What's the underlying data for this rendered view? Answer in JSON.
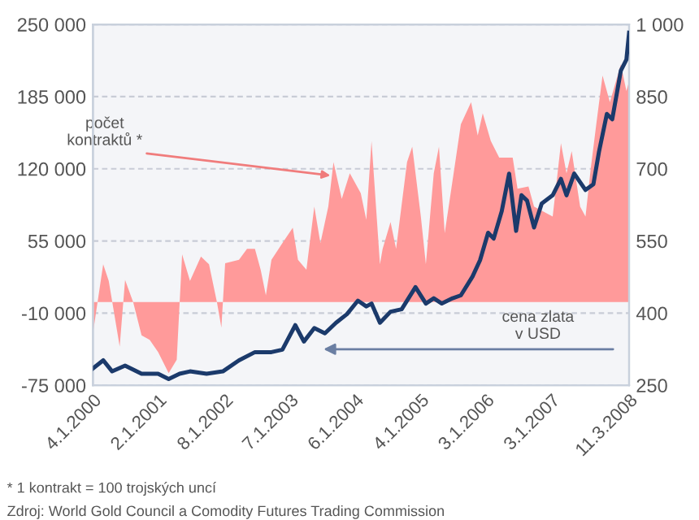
{
  "chart_data": {
    "type": "line",
    "series": [
      {
        "type": "area",
        "axis": "y",
        "color": "#ff9a9a",
        "x": [
          "2000-01-04",
          "2000-03-01",
          "2000-04-01",
          "2000-06-01",
          "2000-07-01",
          "2000-08-15",
          "2000-10-01",
          "2000-11-15",
          "2001-01-01",
          "2001-03-01",
          "2001-04-15",
          "2001-05-15",
          "2001-06-28",
          "2001-08-28",
          "2001-10-12",
          "2001-11-25",
          "2001-12-20",
          "2002-01-10",
          "2002-03-28",
          "2002-05-12",
          "2002-06-25",
          "2002-07-27",
          "2002-08-25",
          "2002-09-25",
          "2002-11-25",
          "2003-01-22",
          "2003-02-20",
          "2003-04-08",
          "2003-05-22",
          "2003-06-25",
          "2003-08-08",
          "2003-09-06",
          "2003-10-22",
          "2003-12-06",
          "2004-02-05",
          "2004-03-07",
          "2004-04-05",
          "2004-05-22",
          "2004-06-06",
          "2004-07-20",
          "2004-08-20",
          "2004-10-20",
          "2004-11-18",
          "2005-01-05",
          "2005-02-02",
          "2005-03-18",
          "2005-04-16",
          "2005-05-18",
          "2005-07-16",
          "2005-08-16",
          "2005-10-12",
          "2005-11-18",
          "2005-12-16",
          "2006-01-30",
          "2006-03-18",
          "2006-06-01",
          "2006-06-28",
          "2006-08-28",
          "2006-09-28",
          "2007-01-10",
          "2007-02-25",
          "2007-03-28",
          "2007-04-26",
          "2007-06-12",
          "2007-07-12",
          "2007-08-10",
          "2007-09-10",
          "2007-10-15",
          "2007-11-25",
          "2008-01-25",
          "2008-02-25",
          "2008-03-11"
        ],
        "values": [
          -28000,
          34000,
          19000,
          -40000,
          20000,
          0,
          -30000,
          -34000,
          -45000,
          -64000,
          -52000,
          43000,
          19000,
          41000,
          34000,
          0,
          -23000,
          35000,
          38000,
          48000,
          48000,
          29000,
          6000,
          38000,
          53000,
          67000,
          38000,
          29000,
          86000,
          53000,
          86000,
          126000,
          93000,
          116000,
          98000,
          74000,
          145000,
          34000,
          48000,
          72000,
          48000,
          126000,
          140000,
          77000,
          34000,
          116000,
          140000,
          62000,
          126000,
          160000,
          180000,
          150000,
          170000,
          145000,
          130000,
          130000,
          102000,
          104000,
          86000,
          77000,
          143000,
          116000,
          136000,
          86000,
          77000,
          120000,
          160000,
          204000,
          180000,
          214000,
          190000,
          199000
        ]
      },
      {
        "axis": "y2",
        "color": "#1b3a6b",
        "x": [
          "2000-01-04",
          "2000-03-01",
          "2000-04-20",
          "2000-07-01",
          "2000-10-01",
          "2001-01-01",
          "2001-03-01",
          "2001-05-01",
          "2001-06-28",
          "2001-09-28",
          "2001-12-28",
          "2002-03-28",
          "2002-06-25",
          "2002-09-25",
          "2002-11-25",
          "2003-02-05",
          "2003-03-25",
          "2003-05-22",
          "2003-07-20",
          "2003-09-20",
          "2003-11-20",
          "2004-01-20",
          "2004-03-07",
          "2004-04-05",
          "2004-05-22",
          "2004-07-20",
          "2004-09-20",
          "2004-12-06",
          "2005-02-02",
          "2005-03-18",
          "2005-05-02",
          "2005-07-01",
          "2005-08-16",
          "2005-10-20",
          "2005-12-01",
          "2006-01-15",
          "2006-02-15",
          "2006-04-01",
          "2006-05-12",
          "2006-06-20",
          "2006-07-20",
          "2006-08-20",
          "2006-09-28",
          "2006-11-10",
          "2007-01-10",
          "2007-02-25",
          "2007-03-28",
          "2007-05-10",
          "2007-07-12",
          "2007-08-25",
          "2007-09-25",
          "2007-11-08",
          "2007-12-08",
          "2008-01-25",
          "2008-02-25",
          "2008-03-11"
        ],
        "values": [
          285,
          302,
          279,
          291,
          274,
          274,
          263,
          274,
          279,
          274,
          279,
          302,
          319,
          319,
          324,
          375,
          341,
          369,
          358,
          380,
          398,
          426,
          414,
          420,
          380,
          403,
          408,
          454,
          420,
          431,
          420,
          431,
          437,
          476,
          510,
          567,
          555,
          612,
          690,
          571,
          645,
          634,
          578,
          628,
          645,
          679,
          645,
          690,
          656,
          668,
          735,
          814,
          803,
          904,
          927,
          983
        ]
      }
    ],
    "xlim": [
      "2000-01-04",
      "2008-03-11"
    ],
    "xticks": [
      {
        "value": "2000-01-04",
        "label": "4.1.2000"
      },
      {
        "value": "2001-01-02",
        "label": "2.1.2001"
      },
      {
        "value": "2002-01-08",
        "label": "8.1.2002"
      },
      {
        "value": "2003-01-07",
        "label": "7.1.2003"
      },
      {
        "value": "2004-01-06",
        "label": "6.1.2004"
      },
      {
        "value": "2005-01-04",
        "label": "4.1.2005"
      },
      {
        "value": "2006-01-03",
        "label": "3.1.2006"
      },
      {
        "value": "2007-01-03",
        "label": "3.1.2007"
      },
      {
        "value": "2008-03-11",
        "label": "11.3.2008"
      }
    ],
    "ylim": [
      -75000,
      250000
    ],
    "yticks": [
      {
        "value": -75000,
        "label": "-75 000"
      },
      {
        "value": -10000,
        "label": "-10 000"
      },
      {
        "value": 55000,
        "label": "55 000"
      },
      {
        "value": 120000,
        "label": "120 000"
      },
      {
        "value": 185000,
        "label": "185 000"
      },
      {
        "value": 250000,
        "label": "250 000"
      }
    ],
    "y2lim": [
      250,
      1000
    ],
    "y2ticks": [
      250,
      400,
      550,
      700,
      850,
      {
        "value": 1000,
        "label": "1 000"
      }
    ],
    "grid": "y",
    "annotations": [
      {
        "text": "počet\nkontraktů *",
        "x": "2003-08-20",
        "y": 114000
      },
      "cena zlata\nv USD",
      "* 1 kontrakt = 100 trojských uncí",
      "Zdroj: World Gold Council a Comodity Futures Trading Commission"
    ]
  }
}
